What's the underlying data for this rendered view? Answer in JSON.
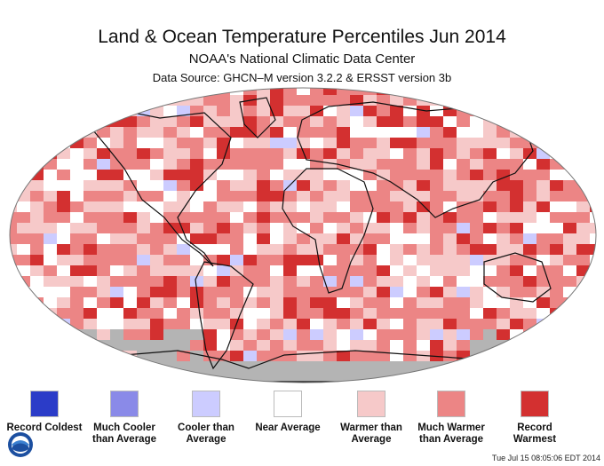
{
  "title": "Land & Ocean Temperature Percentiles Jun 2014",
  "subtitle": "NOAA's National Climatic Data Center",
  "source": "Data Source: GHCN–M version 3.2.2 & ERSST version 3b",
  "no_data_color": "#b4b4b4",
  "legend": [
    {
      "label": "Record Coldest",
      "color": "#2b3cc8"
    },
    {
      "label": "Much Cooler than Average",
      "color": "#8a8ae8"
    },
    {
      "label": "Cooler than Average",
      "color": "#ccccff"
    },
    {
      "label": "Near Average",
      "color": "#ffffff"
    },
    {
      "label": "Warmer than Average",
      "color": "#f6c9c9"
    },
    {
      "label": "Much Warmer than Average",
      "color": "#ec8585"
    },
    {
      "label": "Record Warmest",
      "color": "#d33030"
    }
  ],
  "timestamp": "Tue Jul 15 08:05:06 EDT 2014",
  "logo": {
    "text": "NOAA",
    "icon": "noaa-logo-icon"
  }
}
